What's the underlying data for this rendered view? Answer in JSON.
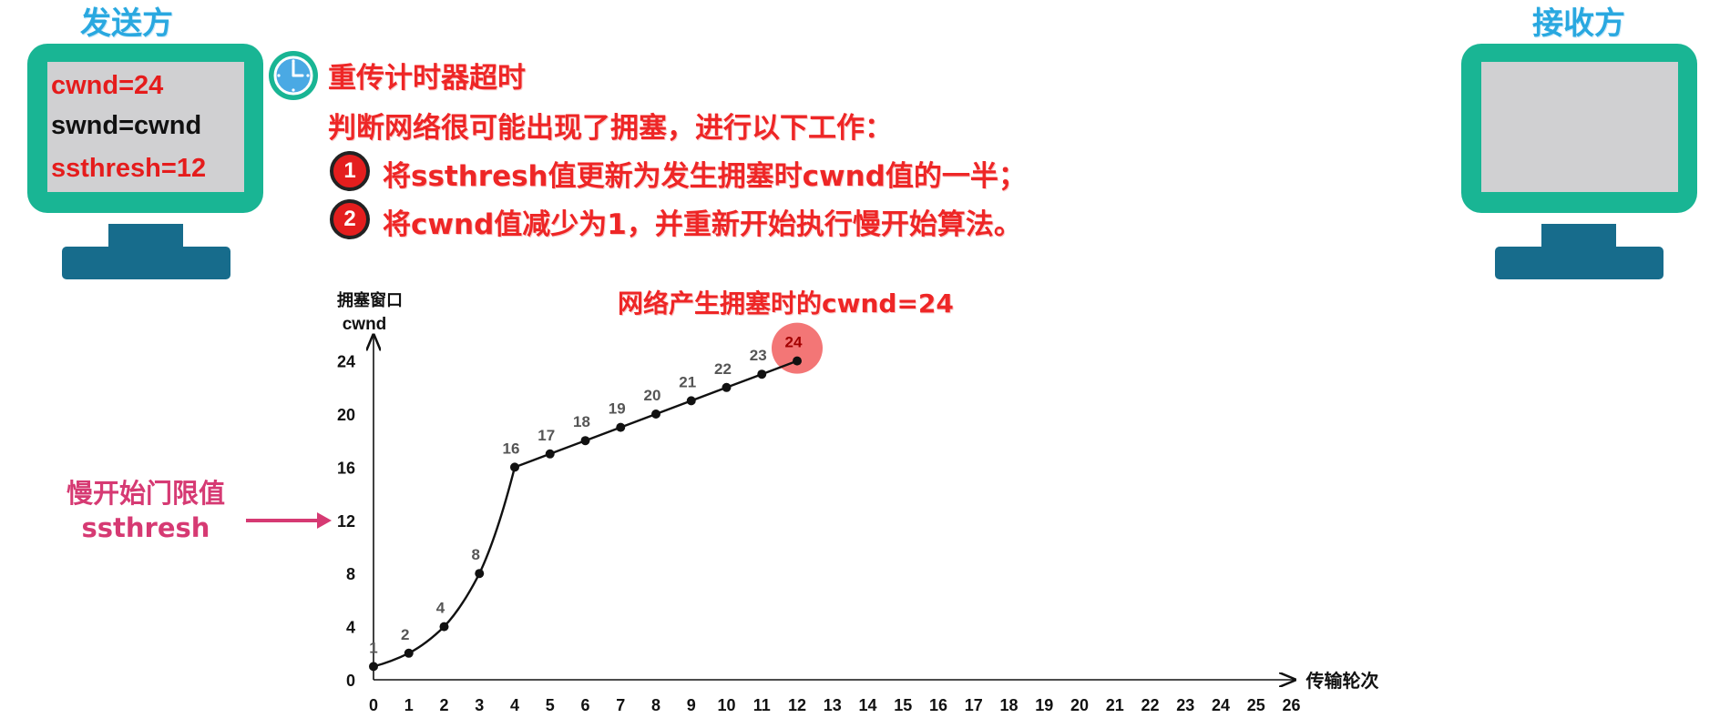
{
  "sender": {
    "title": "发送方",
    "vars": [
      "cwnd=24",
      "swnd=cwnd",
      "ssthresh=12"
    ],
    "var_colors": [
      "#e51c1c",
      "#111111",
      "#e51c1c"
    ]
  },
  "receiver": {
    "title": "接收方"
  },
  "timeout": {
    "icon": "clock-icon",
    "title": "重传计时器超时",
    "subtitle": "判断网络很可能出现了拥塞，进行以下工作：",
    "steps": [
      {
        "num": "1",
        "text": "将ssthresh值更新为发生拥塞时cwnd值的一半；"
      },
      {
        "num": "2",
        "text": "将cwnd值减少为1，并重新开始执行慢开始算法。"
      }
    ]
  },
  "ssthresh_note": {
    "line1": "慢开始门限值",
    "line2": "ssthresh"
  },
  "congestion_note": "网络产生拥塞时的cwnd=24",
  "colors": {
    "accent_red": "#ee2626",
    "teal": "#19b594",
    "stand": "#176c8c",
    "title_blue": "#29a8e0",
    "pink": "#d63a73"
  },
  "chart_data": {
    "type": "line",
    "ylabel_line1": "拥塞窗口",
    "ylabel_line2": "cwnd",
    "xlabel": "传输轮次",
    "xlim": [
      0,
      26
    ],
    "ylim": [
      0,
      24
    ],
    "y_ticks": [
      0,
      4,
      8,
      12,
      16,
      20,
      24
    ],
    "x_ticks": [
      0,
      1,
      2,
      3,
      4,
      5,
      6,
      7,
      8,
      9,
      10,
      11,
      12,
      13,
      14,
      15,
      16,
      17,
      18,
      19,
      20,
      21,
      22,
      23,
      24,
      25,
      26
    ],
    "x": [
      0,
      1,
      2,
      3,
      4,
      5,
      6,
      7,
      8,
      9,
      10,
      11,
      12
    ],
    "y": [
      1,
      2,
      4,
      8,
      16,
      17,
      18,
      19,
      20,
      21,
      22,
      23,
      24
    ],
    "point_labels": [
      "1",
      "2",
      "4",
      "8",
      "16",
      "17",
      "18",
      "19",
      "20",
      "21",
      "22",
      "23",
      "24"
    ],
    "ssthresh": 12,
    "highlight_index": 12
  }
}
